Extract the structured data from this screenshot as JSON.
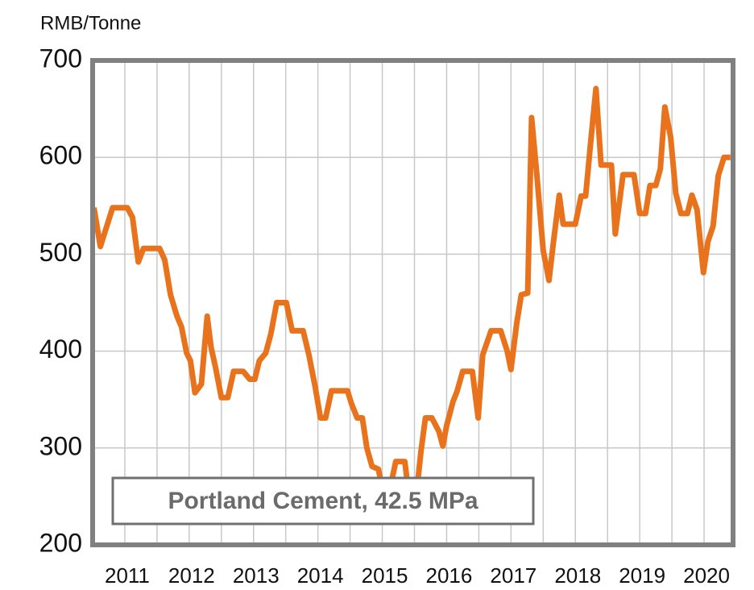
{
  "chart_data": {
    "type": "line",
    "y_label": "RMB/Tonne",
    "annotation": "Portland Cement, 42.5 MPa",
    "x": [
      2010.52,
      2010.62,
      2010.81,
      2011.04,
      2011.12,
      2011.21,
      2011.29,
      2011.54,
      2011.62,
      2011.71,
      2011.81,
      2011.88,
      2011.96,
      2012.02,
      2012.09,
      2012.19,
      2012.28,
      2012.34,
      2012.41,
      2012.5,
      2012.6,
      2012.69,
      2012.84,
      2012.94,
      2013.02,
      2013.09,
      2013.19,
      2013.27,
      2013.36,
      2013.51,
      2013.6,
      2013.77,
      2013.86,
      2013.96,
      2014.04,
      2014.12,
      2014.21,
      2014.46,
      2014.52,
      2014.61,
      2014.69,
      2014.76,
      2014.84,
      2014.94,
      2015.0,
      2015.12,
      2015.21,
      2015.35,
      2015.41,
      2015.54,
      2015.6,
      2015.67,
      2015.77,
      2015.88,
      2015.94,
      2016.0,
      2016.1,
      2016.16,
      2016.25,
      2016.4,
      2016.49,
      2016.56,
      2016.69,
      2016.84,
      2016.94,
      2017.0,
      2017.09,
      2017.16,
      2017.26,
      2017.32,
      2017.4,
      2017.5,
      2017.59,
      2017.66,
      2017.75,
      2017.81,
      2018.0,
      2018.09,
      2018.16,
      2018.24,
      2018.32,
      2018.4,
      2018.56,
      2018.62,
      2018.74,
      2018.91,
      2019.0,
      2019.09,
      2019.16,
      2019.25,
      2019.32,
      2019.39,
      2019.48,
      2019.56,
      2019.64,
      2019.74,
      2019.81,
      2019.89,
      2019.99,
      2020.06,
      2020.14,
      2020.22,
      2020.31,
      2020.41
    ],
    "series": [
      {
        "name": "Portland Cement, 42.5 MPa",
        "color": "#e8731c",
        "values": [
          548,
          508,
          548,
          548,
          538,
          492,
          506,
          506,
          494,
          458,
          436,
          425,
          398,
          390,
          357,
          366,
          436,
          404,
          383,
          352,
          352,
          379,
          379,
          371,
          371,
          390,
          398,
          418,
          450,
          450,
          421,
          421,
          396,
          362,
          331,
          331,
          359,
          359,
          346,
          331,
          331,
          300,
          281,
          278,
          258,
          258,
          286,
          286,
          254,
          258,
          296,
          331,
          331,
          317,
          302,
          323,
          348,
          358,
          379,
          379,
          331,
          396,
          421,
          421,
          400,
          381,
          429,
          458,
          460,
          641,
          583,
          504,
          473,
          513,
          561,
          531,
          531,
          560,
          560,
          617,
          671,
          592,
          592,
          521,
          582,
          582,
          542,
          542,
          571,
          571,
          588,
          652,
          621,
          563,
          542,
          542,
          561,
          546,
          481,
          513,
          529,
          581,
          600,
          600
        ]
      }
    ],
    "xlim": [
      2010.5,
      2020.45
    ],
    "xticks": [
      2011,
      2012,
      2013,
      2014,
      2015,
      2016,
      2017,
      2018,
      2019,
      2020
    ],
    "ylim": [
      200,
      700
    ],
    "yticks": [
      200,
      300,
      400,
      500,
      600,
      700
    ],
    "grid": true
  }
}
